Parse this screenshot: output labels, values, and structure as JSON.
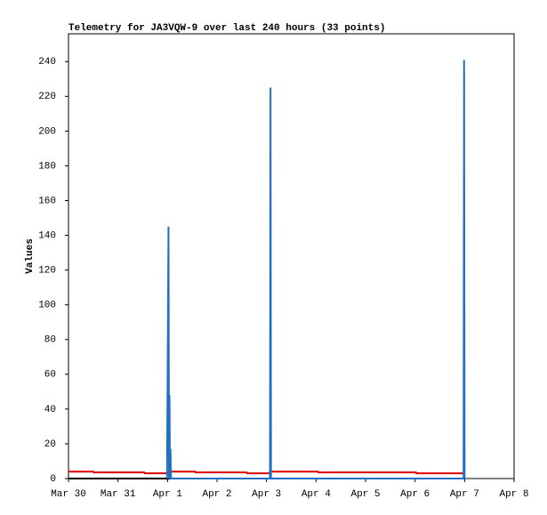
{
  "chart_data": {
    "type": "line",
    "title": "Telemetry for JA3VQW-9 over last 240 hours (33 points)",
    "y_label": "Values",
    "xlim": [
      0,
      9
    ],
    "xticks": [
      {
        "value": 0,
        "label": "Mar 30"
      },
      {
        "value": 1,
        "label": "Mar 31"
      },
      {
        "value": 2,
        "label": "Apr 1"
      },
      {
        "value": 3,
        "label": "Apr 2"
      },
      {
        "value": 4,
        "label": "Apr 3"
      },
      {
        "value": 5,
        "label": "Apr 4"
      },
      {
        "value": 6,
        "label": "Apr 5"
      },
      {
        "value": 7,
        "label": "Apr 6"
      },
      {
        "value": 8,
        "label": "Apr 7"
      },
      {
        "value": 9,
        "label": "Apr 8"
      }
    ],
    "ylim": [
      0,
      256
    ],
    "yticks": [
      0,
      20,
      40,
      60,
      80,
      100,
      120,
      140,
      160,
      180,
      200,
      220,
      240
    ],
    "series": [
      {
        "color": "#000000",
        "x": [
          0,
          7.98
        ],
        "values": [
          0,
          0
        ]
      },
      {
        "color": "#dd0000",
        "x": [
          0,
          0.5,
          0.51,
          1.53,
          1.54,
          2.0,
          2.01,
          2.56,
          2.57,
          3.6,
          3.61,
          4.06,
          4.07,
          5.04,
          5.05,
          7.02,
          7.03,
          7.98
        ],
        "values": [
          4,
          4,
          3.5,
          3.5,
          3,
          3,
          4,
          4,
          3.5,
          3.5,
          3,
          3,
          4,
          4,
          3.5,
          3.5,
          3,
          3
        ]
      },
      {
        "color": "#1f6fc5",
        "x": [
          1.99,
          2.02,
          2.03,
          2.04,
          2.05,
          2.06,
          2.07,
          2.08,
          4.07,
          4.08,
          4.09,
          7.98,
          7.99,
          8.0
        ],
        "values": [
          0,
          145,
          0,
          48,
          0,
          17,
          0,
          0,
          0,
          225,
          0,
          0,
          241,
          0
        ]
      }
    ]
  }
}
